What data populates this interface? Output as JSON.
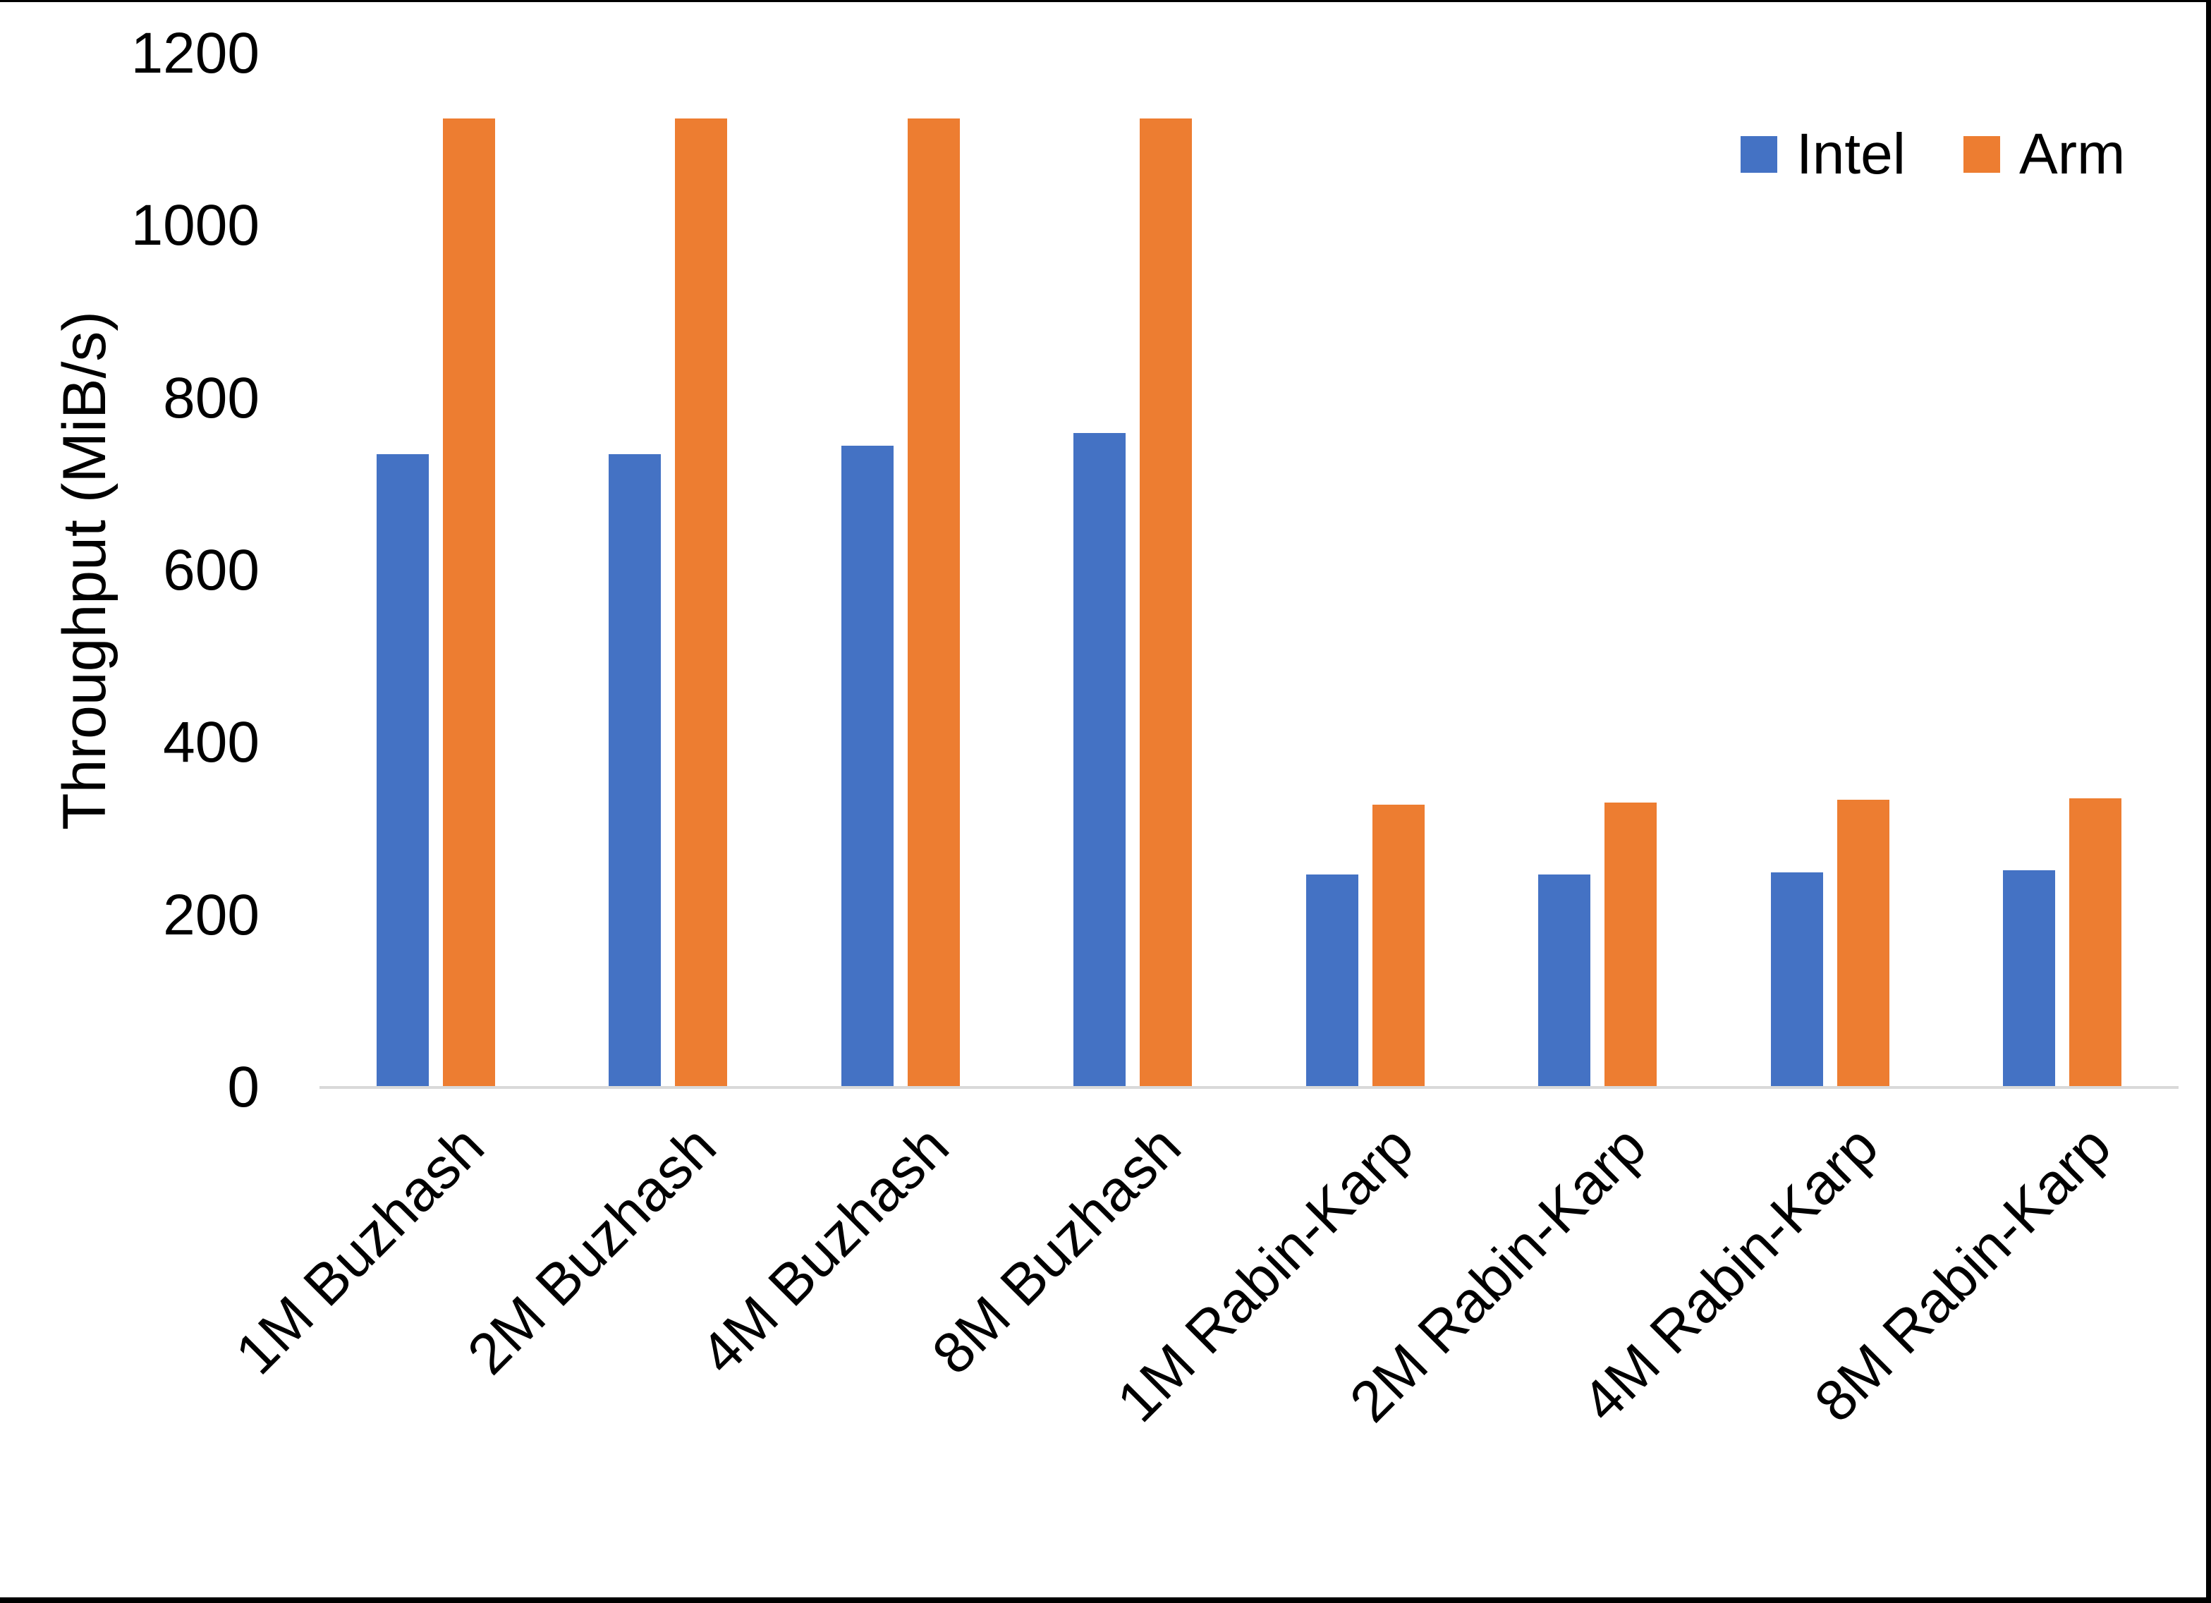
{
  "chart_data": {
    "type": "bar",
    "title": "",
    "ylabel": "Throughput (MiB/s)",
    "xlabel": "",
    "ylim": [
      0,
      1200
    ],
    "yticks": [
      0,
      200,
      400,
      600,
      800,
      1000,
      1200
    ],
    "grid": false,
    "legend_position": "top-right",
    "categories": [
      "1M Buzhash",
      "2M Buzhash",
      "4M Buzhash",
      "8M Buzhash",
      "1M Rabin-Karp",
      "2M Rabin-Karp",
      "4M Rabin-Karp",
      "8M Rabin-Karp"
    ],
    "series": [
      {
        "name": "Intel",
        "color": "#4472C4",
        "values": [
          735,
          735,
          745,
          760,
          247,
          247,
          250,
          252
        ]
      },
      {
        "name": "Arm",
        "color": "#ED7D31",
        "values": [
          1125,
          1125,
          1125,
          1125,
          328,
          331,
          334,
          336
        ]
      }
    ],
    "colors": {
      "axis_line": "#d9d9d9",
      "text": "#000000",
      "background": "#ffffff"
    }
  }
}
